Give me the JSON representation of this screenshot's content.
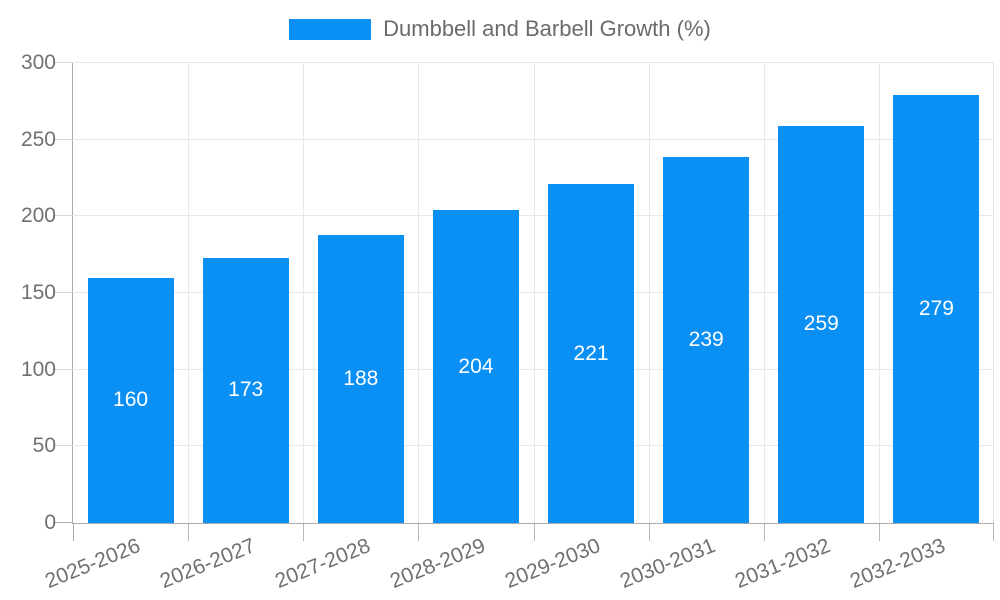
{
  "chart_data": {
    "type": "bar",
    "title": "",
    "legend_label": "Dumbbell and Barbell Growth (%)",
    "legend_position": "top",
    "categories": [
      "2025-2026",
      "2026-2027",
      "2027-2028",
      "2028-2029",
      "2029-2030",
      "2030-2031",
      "2031-2032",
      "2032-2033"
    ],
    "series": [
      {
        "name": "Dumbbell and Barbell Growth (%)",
        "values": [
          160,
          173,
          188,
          204,
          221,
          239,
          259,
          279
        ]
      }
    ],
    "value_labels_shown": true,
    "xlabel": "",
    "ylabel": "",
    "ylim": [
      0,
      300
    ],
    "yticks": [
      0,
      50,
      100,
      150,
      200,
      250,
      300
    ],
    "grid": true,
    "x_label_rotation_deg": -22,
    "colors": {
      "bar": "#0a8ff5",
      "value_label": "#ffffff",
      "axis_text": "#717171",
      "legend_text": "#6b6b6b",
      "axis_line": "#ababab",
      "grid_line": "#e8e8e8",
      "y_tick": "#d9d9d9",
      "x_tick": "#b8b8b8",
      "background": "#ffffff"
    }
  }
}
